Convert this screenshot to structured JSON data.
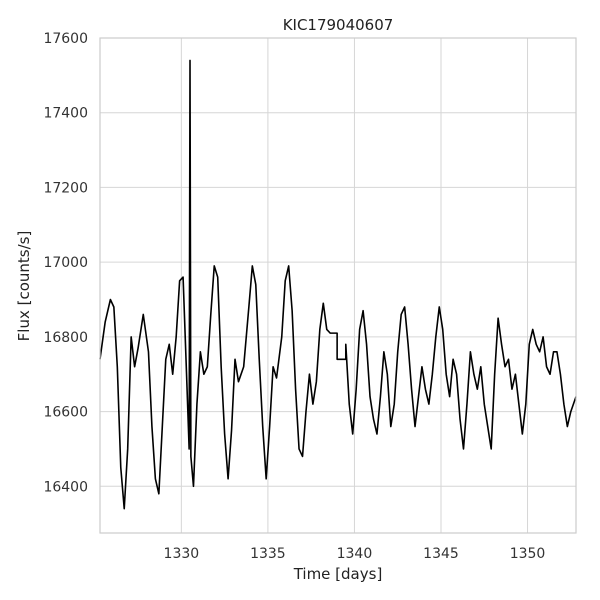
{
  "chart_data": {
    "type": "line",
    "title": "KIC179040607",
    "xlabel": "Time [days]",
    "ylabel": "Flux [counts/s]",
    "xlim": [
      1325.3,
      1352.8
    ],
    "ylim": [
      16275,
      17600
    ],
    "xticks": [
      1330,
      1335,
      1340,
      1345,
      1350
    ],
    "yticks": [
      16400,
      16600,
      16800,
      17000,
      17200,
      17400,
      17600
    ],
    "grid": true,
    "legend": "none",
    "line_color": "#000000",
    "series": [
      {
        "values": [
          [
            1325.3,
            16740
          ],
          [
            1325.6,
            16840
          ],
          [
            1325.9,
            16900
          ],
          [
            1326.1,
            16880
          ],
          [
            1326.3,
            16720
          ],
          [
            1326.5,
            16450
          ],
          [
            1326.7,
            16340
          ],
          [
            1326.9,
            16500
          ],
          [
            1327.1,
            16800
          ],
          [
            1327.3,
            16720
          ],
          [
            1327.5,
            16770
          ],
          [
            1327.8,
            16860
          ],
          [
            1328.1,
            16760
          ],
          [
            1328.3,
            16560
          ],
          [
            1328.5,
            16420
          ],
          [
            1328.7,
            16380
          ],
          [
            1328.9,
            16560
          ],
          [
            1329.1,
            16740
          ],
          [
            1329.3,
            16780
          ],
          [
            1329.5,
            16700
          ],
          [
            1329.7,
            16800
          ],
          [
            1329.9,
            16950
          ],
          [
            1330.1,
            16960
          ],
          [
            1330.3,
            16700
          ],
          [
            1330.45,
            16500
          ],
          [
            1330.5,
            17540
          ],
          [
            1330.55,
            16480
          ],
          [
            1330.7,
            16400
          ],
          [
            1330.9,
            16620
          ],
          [
            1331.1,
            16760
          ],
          [
            1331.3,
            16700
          ],
          [
            1331.5,
            16720
          ],
          [
            1331.7,
            16860
          ],
          [
            1331.9,
            16990
          ],
          [
            1332.1,
            16960
          ],
          [
            1332.3,
            16720
          ],
          [
            1332.5,
            16540
          ],
          [
            1332.7,
            16420
          ],
          [
            1332.9,
            16550
          ],
          [
            1333.1,
            16740
          ],
          [
            1333.3,
            16680
          ],
          [
            1333.6,
            16720
          ],
          [
            1333.9,
            16880
          ],
          [
            1334.1,
            16990
          ],
          [
            1334.3,
            16940
          ],
          [
            1334.5,
            16740
          ],
          [
            1334.7,
            16560
          ],
          [
            1334.9,
            16420
          ],
          [
            1335.1,
            16560
          ],
          [
            1335.3,
            16720
          ],
          [
            1335.5,
            16690
          ],
          [
            1335.8,
            16800
          ],
          [
            1336.0,
            16950
          ],
          [
            1336.2,
            16990
          ],
          [
            1336.4,
            16870
          ],
          [
            1336.6,
            16660
          ],
          [
            1336.8,
            16500
          ],
          [
            1337.0,
            16480
          ],
          [
            1337.2,
            16600
          ],
          [
            1337.4,
            16700
          ],
          [
            1337.6,
            16620
          ],
          [
            1337.8,
            16680
          ],
          [
            1338.0,
            16820
          ],
          [
            1338.2,
            16890
          ],
          [
            1338.4,
            16820
          ],
          [
            1338.6,
            16810
          ],
          [
            1339.0,
            16810
          ],
          [
            1339.0,
            16740
          ],
          [
            1339.5,
            16740
          ],
          [
            1339.5,
            16780
          ],
          [
            1339.7,
            16620
          ],
          [
            1339.9,
            16540
          ],
          [
            1340.1,
            16660
          ],
          [
            1340.3,
            16820
          ],
          [
            1340.5,
            16870
          ],
          [
            1340.7,
            16780
          ],
          [
            1340.9,
            16640
          ],
          [
            1341.1,
            16580
          ],
          [
            1341.3,
            16540
          ],
          [
            1341.5,
            16640
          ],
          [
            1341.7,
            16760
          ],
          [
            1341.9,
            16700
          ],
          [
            1342.1,
            16560
          ],
          [
            1342.3,
            16620
          ],
          [
            1342.5,
            16760
          ],
          [
            1342.7,
            16860
          ],
          [
            1342.9,
            16880
          ],
          [
            1343.1,
            16780
          ],
          [
            1343.3,
            16660
          ],
          [
            1343.5,
            16560
          ],
          [
            1343.7,
            16640
          ],
          [
            1343.9,
            16720
          ],
          [
            1344.1,
            16660
          ],
          [
            1344.3,
            16620
          ],
          [
            1344.5,
            16700
          ],
          [
            1344.7,
            16800
          ],
          [
            1344.9,
            16880
          ],
          [
            1345.1,
            16820
          ],
          [
            1345.3,
            16700
          ],
          [
            1345.5,
            16640
          ],
          [
            1345.7,
            16740
          ],
          [
            1345.9,
            16700
          ],
          [
            1346.1,
            16580
          ],
          [
            1346.3,
            16500
          ],
          [
            1346.5,
            16620
          ],
          [
            1346.7,
            16760
          ],
          [
            1346.9,
            16700
          ],
          [
            1347.1,
            16660
          ],
          [
            1347.3,
            16720
          ],
          [
            1347.5,
            16620
          ],
          [
            1347.7,
            16560
          ],
          [
            1347.9,
            16500
          ],
          [
            1348.1,
            16700
          ],
          [
            1348.3,
            16850
          ],
          [
            1348.5,
            16780
          ],
          [
            1348.7,
            16720
          ],
          [
            1348.9,
            16740
          ],
          [
            1349.1,
            16660
          ],
          [
            1349.3,
            16700
          ],
          [
            1349.5,
            16620
          ],
          [
            1349.7,
            16540
          ],
          [
            1349.9,
            16620
          ],
          [
            1350.1,
            16780
          ],
          [
            1350.3,
            16820
          ],
          [
            1350.5,
            16780
          ],
          [
            1350.7,
            16760
          ],
          [
            1350.9,
            16800
          ],
          [
            1351.1,
            16720
          ],
          [
            1351.3,
            16700
          ],
          [
            1351.5,
            16760
          ],
          [
            1351.7,
            16760
          ],
          [
            1351.9,
            16700
          ],
          [
            1352.1,
            16620
          ],
          [
            1352.3,
            16560
          ],
          [
            1352.5,
            16600
          ],
          [
            1352.8,
            16640
          ]
        ]
      }
    ]
  }
}
